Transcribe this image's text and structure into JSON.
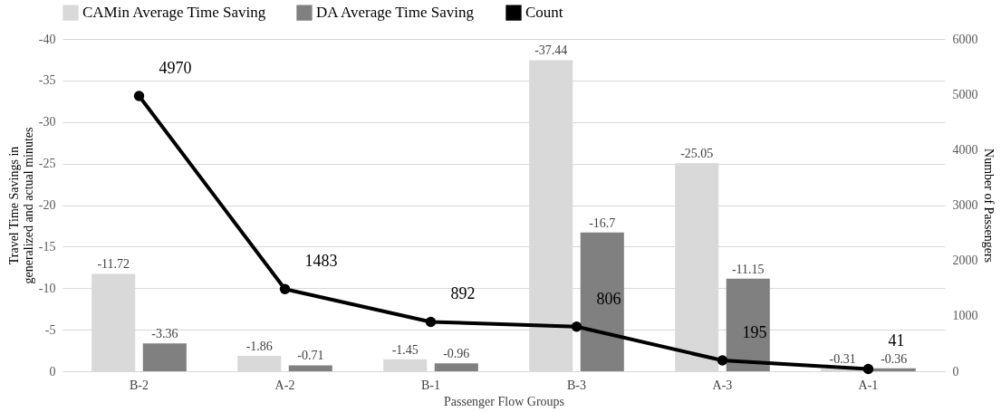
{
  "chart_data": {
    "type": "bar",
    "categories": [
      "B-2",
      "A-2",
      "B-1",
      "B-3",
      "A-3",
      "A-1"
    ],
    "xlabel": "Passenger Flow Groups",
    "ylabel": "Travel Time Savings in generalized and actual minutes",
    "y2label": "Number of Passengers",
    "ylim": [
      0,
      -40
    ],
    "yticks": [
      0,
      -5,
      -10,
      -15,
      -20,
      -25,
      -30,
      -35,
      -40
    ],
    "y2lim": [
      0,
      6000
    ],
    "y2ticks": [
      0,
      1000,
      2000,
      3000,
      4000,
      5000,
      6000
    ],
    "grid": "y",
    "legend": "top",
    "data_labels": true,
    "marker": "circle",
    "series": [
      {
        "name": "CAMin Average Time Saving",
        "color": "#d9d9d9",
        "values": [
          -11.72,
          -1.86,
          -1.45,
          -37.44,
          -25.05,
          -0.31
        ]
      },
      {
        "name": "DA Average Time Saving",
        "color": "#808080",
        "values": [
          -3.36,
          -0.71,
          -0.96,
          -16.7,
          -11.15,
          -0.36
        ]
      },
      {
        "name": "Count",
        "type": "line",
        "axis": "y2",
        "color": "#000000",
        "values": [
          4970,
          1483,
          892,
          806,
          195,
          41
        ]
      }
    ]
  }
}
